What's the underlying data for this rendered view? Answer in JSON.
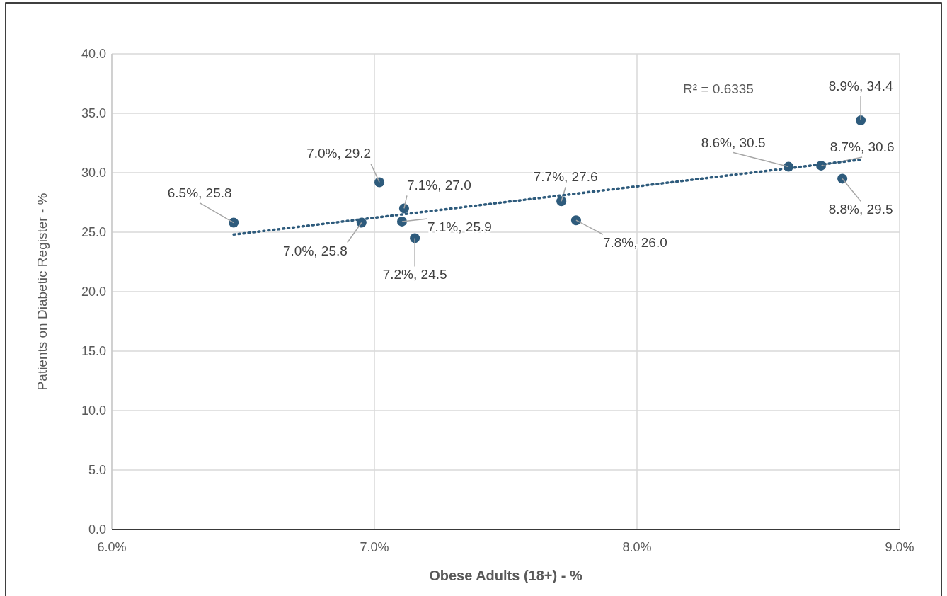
{
  "chart_data": {
    "type": "scatter",
    "xlabel": "Obese Adults (18+) - %",
    "ylabel": "Patients on Diabetic Register - %",
    "xlim": [
      6.0,
      9.0
    ],
    "xticks": [
      {
        "value": 6,
        "label": "6.0%"
      },
      {
        "value": 7,
        "label": "7.0%"
      },
      {
        "value": 8,
        "label": "8.0%"
      },
      {
        "value": 9,
        "label": "9.0%"
      }
    ],
    "ylim": [
      0,
      40
    ],
    "yticks": [
      {
        "value": 0,
        "label": "0.0"
      },
      {
        "value": 5,
        "label": "5.0"
      },
      {
        "value": 10,
        "label": "10.0"
      },
      {
        "value": 15,
        "label": "15.0"
      },
      {
        "value": 20,
        "label": "20.0"
      },
      {
        "value": 25,
        "label": "25.0"
      },
      {
        "value": 30,
        "label": "30.0"
      },
      {
        "value": 35,
        "label": "35.0"
      },
      {
        "value": 40,
        "label": "40.0"
      }
    ],
    "grid": true,
    "annotations": [
      "R² = 0.6335"
    ],
    "series": [
      {
        "marker": "circle",
        "color": "#2e5b7c",
        "x": [
          6.464,
          6.951,
          7.019,
          7.113,
          7.105,
          7.154,
          7.712,
          7.768,
          8.577,
          8.701,
          8.782,
          8.852
        ],
        "values": [
          25.8,
          25.8,
          29.2,
          27.0,
          25.9,
          24.5,
          27.6,
          26.0,
          30.5,
          30.6,
          29.5,
          34.4
        ],
        "value_labels": [
          "6.5%, 25.8",
          "7.0%, 25.8",
          "7.0%, 29.2",
          "7.1%, 27.0",
          "7.1%, 25.9",
          "7.2%, 24.5",
          "7.7%, 27.6",
          "7.8%, 26.0",
          "8.6%, 30.5",
          "8.7%, 30.6",
          "8.8%, 29.5",
          "8.9%, 34.4"
        ]
      },
      {
        "type": "line",
        "color": "#2e5b7c",
        "line_style": "dotted",
        "x": [
          6.464,
          8.852
        ],
        "values": [
          24.8,
          31.1
        ]
      }
    ]
  }
}
